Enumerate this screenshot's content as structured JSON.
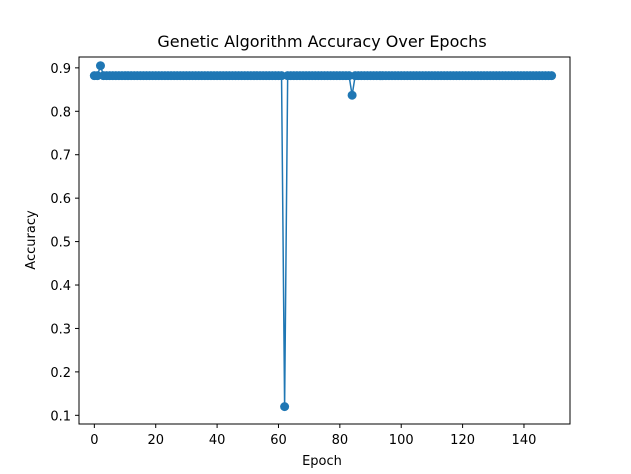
{
  "chart_data": {
    "type": "line",
    "title": "Genetic Algorithm Accuracy Over Epochs",
    "xlabel": "Epoch",
    "ylabel": "Accuracy",
    "xlim": [
      -5,
      155
    ],
    "ylim": [
      0.08,
      0.925
    ],
    "xticks": [
      0,
      20,
      40,
      60,
      80,
      100,
      120,
      140
    ],
    "yticks": [
      0.1,
      0.2,
      0.3,
      0.4,
      0.5,
      0.6,
      0.7,
      0.8,
      0.9
    ],
    "ytick_labels": [
      "0.1",
      "0.2",
      "0.3",
      "0.4",
      "0.5",
      "0.6",
      "0.7",
      "0.8",
      "0.9"
    ],
    "grid": false,
    "line_color": "#1f77b4",
    "marker": "circle",
    "series": [
      {
        "x_start": 0,
        "x_step": 1,
        "values": [
          0.882,
          0.882,
          0.905,
          0.882,
          0.882,
          0.882,
          0.882,
          0.882,
          0.882,
          0.882,
          0.882,
          0.882,
          0.882,
          0.882,
          0.882,
          0.882,
          0.882,
          0.882,
          0.882,
          0.882,
          0.882,
          0.882,
          0.882,
          0.882,
          0.882,
          0.882,
          0.882,
          0.882,
          0.882,
          0.882,
          0.882,
          0.882,
          0.882,
          0.882,
          0.882,
          0.882,
          0.882,
          0.882,
          0.882,
          0.882,
          0.882,
          0.882,
          0.882,
          0.882,
          0.882,
          0.882,
          0.882,
          0.882,
          0.882,
          0.882,
          0.882,
          0.882,
          0.882,
          0.882,
          0.882,
          0.882,
          0.882,
          0.882,
          0.882,
          0.882,
          0.882,
          0.882,
          0.12,
          0.882,
          0.882,
          0.882,
          0.882,
          0.882,
          0.882,
          0.882,
          0.882,
          0.882,
          0.882,
          0.882,
          0.882,
          0.882,
          0.882,
          0.882,
          0.882,
          0.882,
          0.882,
          0.882,
          0.882,
          0.882,
          0.837,
          0.882,
          0.882,
          0.882,
          0.882,
          0.882,
          0.882,
          0.882,
          0.882,
          0.882,
          0.882,
          0.882,
          0.882,
          0.882,
          0.882,
          0.882,
          0.882,
          0.882,
          0.882,
          0.882,
          0.882,
          0.882,
          0.882,
          0.882,
          0.882,
          0.882,
          0.882,
          0.882,
          0.882,
          0.882,
          0.882,
          0.882,
          0.882,
          0.882,
          0.882,
          0.882,
          0.882,
          0.882,
          0.882,
          0.882,
          0.882,
          0.882,
          0.882,
          0.882,
          0.882,
          0.882,
          0.882,
          0.882,
          0.882,
          0.882,
          0.882,
          0.882,
          0.882,
          0.882,
          0.882,
          0.882,
          0.882,
          0.882,
          0.882,
          0.882,
          0.882,
          0.882,
          0.882,
          0.882,
          0.882,
          0.882
        ]
      }
    ]
  }
}
